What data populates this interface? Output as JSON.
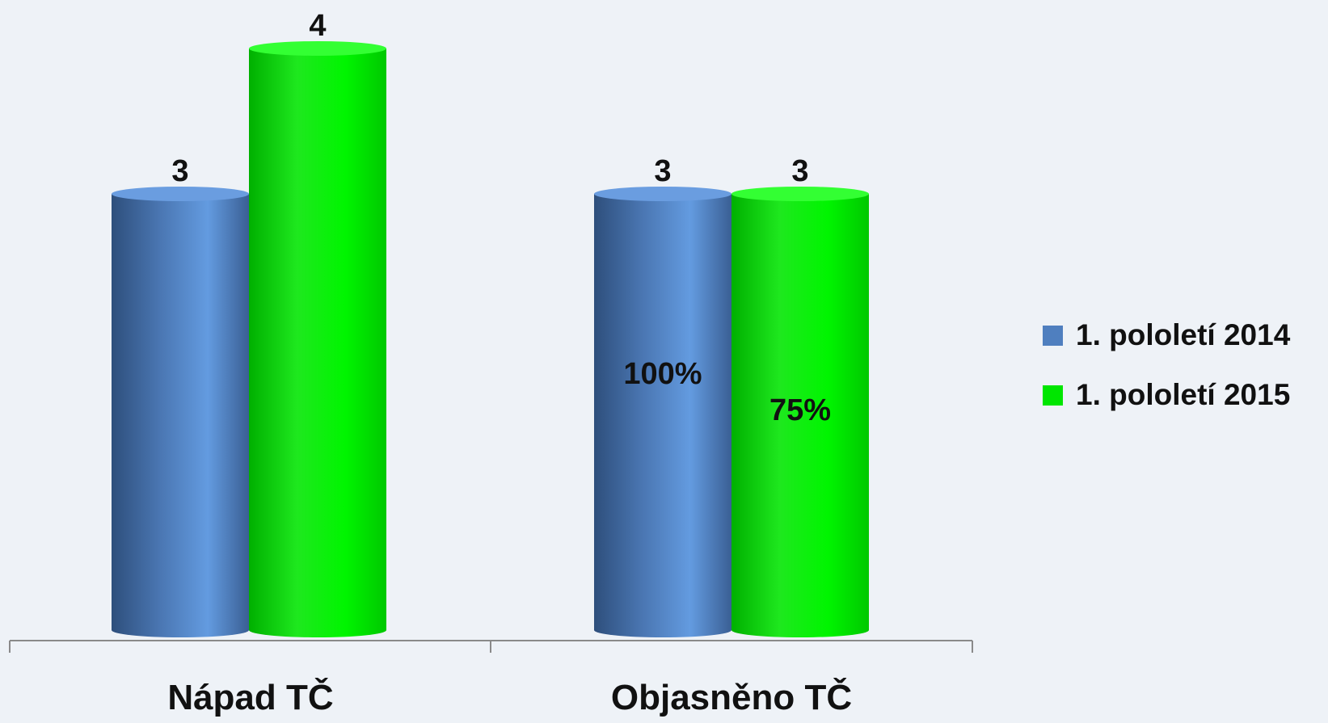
{
  "chart_data": {
    "type": "bar",
    "categories": [
      "Nápad TČ",
      "Objasněno TČ"
    ],
    "series": [
      {
        "name": "1. pololetí 2014",
        "values": [
          3,
          3
        ],
        "color": "#5b8fd6",
        "inner_labels": [
          "",
          "100%"
        ]
      },
      {
        "name": "1. pololetí 2015",
        "values": [
          4,
          3
        ],
        "color": "#00ee00",
        "inner_labels": [
          "",
          "75%"
        ]
      }
    ],
    "title": "",
    "xlabel": "",
    "ylabel": "",
    "ylim": [
      0,
      4
    ],
    "grid": false,
    "legend_position": "right"
  }
}
